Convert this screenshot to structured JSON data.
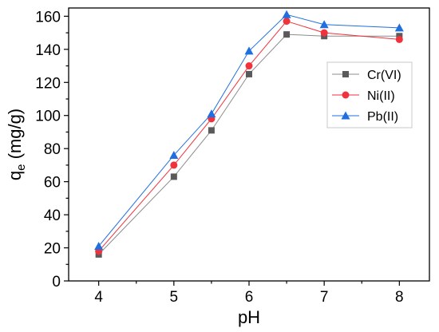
{
  "chart_data": {
    "type": "line",
    "title": "",
    "xlabel": "pH",
    "ylabel": {
      "main": "q",
      "sub": "e",
      "rest": " (mg/g)"
    },
    "x": [
      4,
      5,
      5.5,
      6,
      6.5,
      7,
      8
    ],
    "xlim": [
      3.6,
      8.4
    ],
    "ylim": [
      0,
      165
    ],
    "xticks": [
      "4",
      "5",
      "6",
      "7",
      "8"
    ],
    "yticks": [
      "0",
      "20",
      "40",
      "60",
      "80",
      "100",
      "120",
      "140",
      "160"
    ],
    "grid": false,
    "legend_position": "right",
    "series": [
      {
        "name": "Cr(VI)",
        "marker": "square",
        "color": "#5a5a5a",
        "line_color": "#8c8c8c",
        "values": [
          16,
          63,
          91,
          125,
          149,
          148,
          148
        ]
      },
      {
        "name": "Ni(II)",
        "marker": "circle",
        "color": "#f0323c",
        "line_color": "#f0323c",
        "values": [
          18,
          70,
          98,
          130,
          157,
          150,
          146
        ]
      },
      {
        "name": "Pb(II)",
        "marker": "triangle",
        "color": "#1f6fe0",
        "line_color": "#1f6fe0",
        "values": [
          21,
          76,
          101,
          139,
          161,
          155,
          153
        ]
      }
    ]
  }
}
